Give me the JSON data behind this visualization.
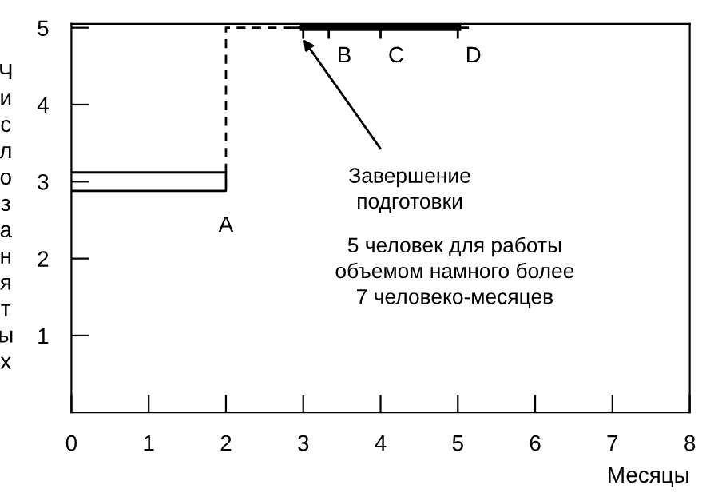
{
  "chart_data": {
    "type": "line",
    "xlabel": "Месяцы",
    "ylabel": "Число занятых",
    "xlim": [
      0,
      8
    ],
    "ylim": [
      0,
      5.05
    ],
    "xticks": [
      0,
      1,
      2,
      3,
      4,
      5,
      6,
      7,
      8
    ],
    "yticks": [
      1,
      2,
      3,
      4,
      5
    ],
    "grid": false,
    "legend": false,
    "series": [
      {
        "color": "#000000",
        "x": [
          0,
          2,
          2,
          0
        ],
        "values": [
          3.12,
          3.12,
          2.88,
          2.88
        ],
        "line_style": "solid",
        "marker": "none"
      },
      {
        "color": "#000000",
        "x": [
          2,
          2,
          3
        ],
        "values": [
          3.12,
          5,
          5
        ],
        "line_style": "dashed",
        "marker": "none"
      },
      {
        "color": "#000000",
        "x": [
          3,
          3.33,
          4,
          5
        ],
        "values": [
          5,
          5,
          5,
          5
        ],
        "line_style": "solid",
        "marker": "cross"
      }
    ],
    "annotations": [
      {
        "text": "A",
        "x": 2,
        "y": 3
      },
      {
        "text": "B",
        "x": 3.33,
        "y": 5
      },
      {
        "text": "C",
        "x": 4,
        "y": 5
      },
      {
        "text": "D",
        "x": 5,
        "y": 5
      },
      {
        "text": "Завершение\nподготовки",
        "x": 3,
        "y": 4.85
      },
      "5 человек для работы\nобъемом намного более\n7 человеко-месяцев"
    ]
  }
}
